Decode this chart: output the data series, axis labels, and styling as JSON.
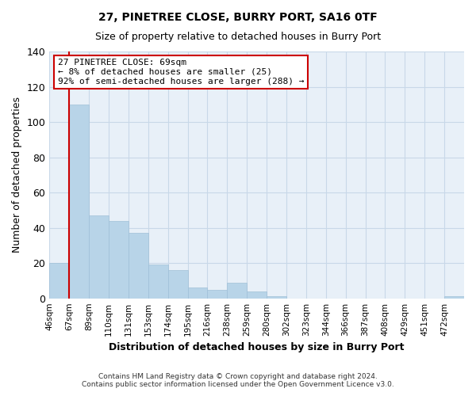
{
  "title": "27, PINETREE CLOSE, BURRY PORT, SA16 0TF",
  "subtitle": "Size of property relative to detached houses in Burry Port",
  "xlabel": "Distribution of detached houses by size in Burry Port",
  "ylabel": "Number of detached properties",
  "bar_labels": [
    "46sqm",
    "67sqm",
    "89sqm",
    "110sqm",
    "131sqm",
    "153sqm",
    "174sqm",
    "195sqm",
    "216sqm",
    "238sqm",
    "259sqm",
    "280sqm",
    "302sqm",
    "323sqm",
    "344sqm",
    "366sqm",
    "387sqm",
    "408sqm",
    "429sqm",
    "451sqm",
    "472sqm"
  ],
  "bar_heights": [
    20,
    110,
    47,
    44,
    37,
    19,
    16,
    6,
    5,
    9,
    4,
    1,
    0,
    0,
    0,
    0,
    0,
    0,
    0,
    0,
    1
  ],
  "bar_color": "#b8d4e8",
  "bar_edgecolor": "#a0c0d8",
  "vline_color": "#cc0000",
  "ylim": [
    0,
    140
  ],
  "yticks": [
    0,
    20,
    40,
    60,
    80,
    100,
    120,
    140
  ],
  "annotation_text": "27 PINETREE CLOSE: 69sqm\n← 8% of detached houses are smaller (25)\n92% of semi-detached houses are larger (288) →",
  "annotation_box_edgecolor": "#cc0000",
  "footer_line1": "Contains HM Land Registry data © Crown copyright and database right 2024.",
  "footer_line2": "Contains public sector information licensed under the Open Government Licence v3.0.",
  "background_color": "#ffffff",
  "plot_bg_color": "#e8f0f8",
  "grid_color": "#c8d8e8"
}
